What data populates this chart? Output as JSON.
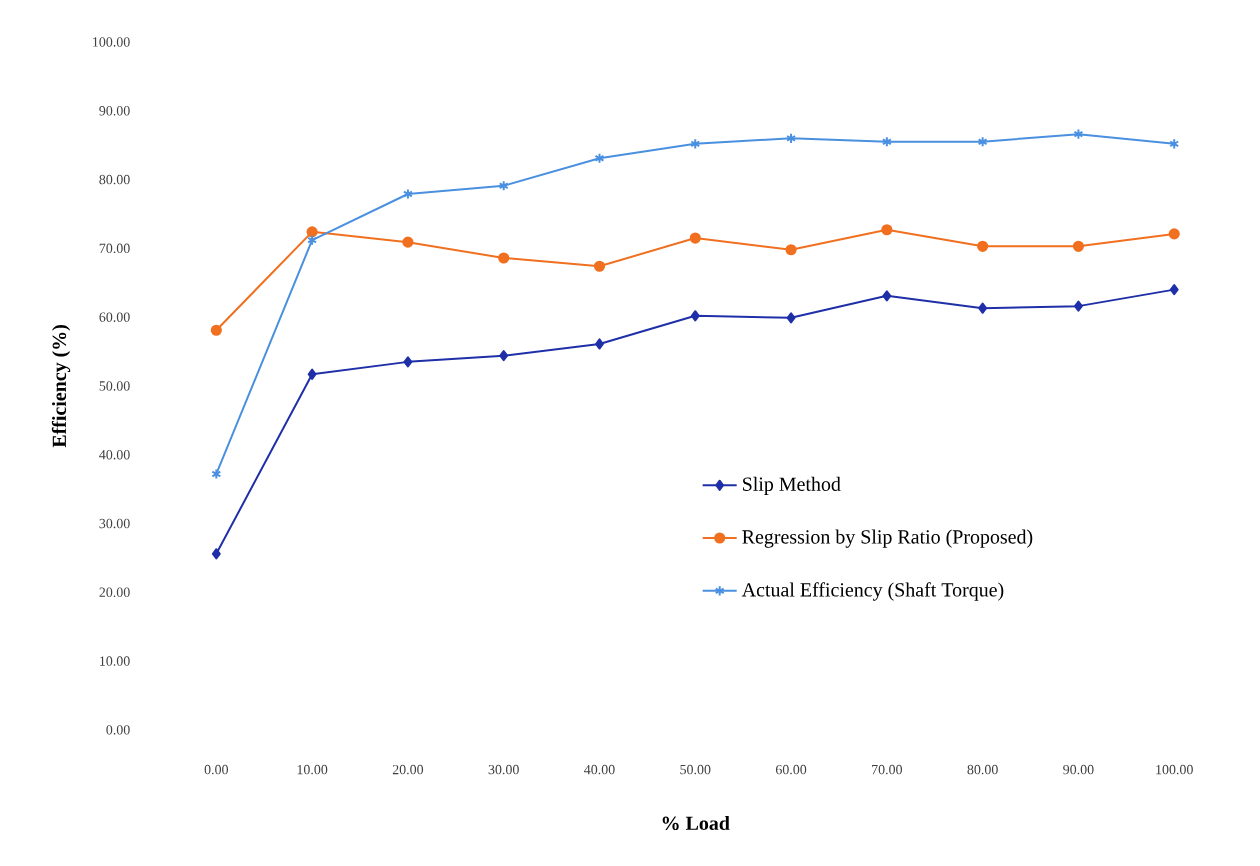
{
  "chart_data": {
    "type": "line",
    "xlabel": "% Load",
    "ylabel": "Efficiency (%)",
    "categories": [
      "0.00",
      "10.00",
      "20.00",
      "30.00",
      "40.00",
      "50.00",
      "60.00",
      "70.00",
      "80.00",
      "90.00",
      "100.00"
    ],
    "ylim": [
      0,
      100
    ],
    "yticks": [
      {
        "value": 0,
        "label": "0.00"
      },
      {
        "value": 10,
        "label": "10.00"
      },
      {
        "value": 20,
        "label": "20.00"
      },
      {
        "value": 30,
        "label": "30.00"
      },
      {
        "value": 40,
        "label": "40.00"
      },
      {
        "value": 50,
        "label": "50.00"
      },
      {
        "value": 60,
        "label": "60.00"
      },
      {
        "value": 70,
        "label": "70.00"
      },
      {
        "value": 80,
        "label": "80.00"
      },
      {
        "value": 90,
        "label": "90.00"
      },
      {
        "value": 100,
        "label": "100.00"
      }
    ],
    "legend": "right",
    "grid": false,
    "series": [
      {
        "name": "Slip Method",
        "color": "#1f2fa8",
        "marker": "diamond",
        "values": [
          25.6,
          51.7,
          53.5,
          54.4,
          56.1,
          60.2,
          59.9,
          63.1,
          61.3,
          61.6,
          64.0
        ]
      },
      {
        "name": "Regression by Slip Ratio (Proposed)",
        "color": "#f07020",
        "marker": "circle",
        "values": [
          58.1,
          72.4,
          70.9,
          68.6,
          67.4,
          71.5,
          69.8,
          72.7,
          70.3,
          70.3,
          72.1
        ]
      },
      {
        "name": "Actual Efficiency (Shaft Torque)",
        "color": "#4a90e0",
        "marker": "cross",
        "values": [
          37.2,
          71.2,
          77.9,
          79.1,
          83.1,
          85.2,
          86.0,
          85.5,
          85.5,
          86.6,
          85.2
        ]
      }
    ]
  }
}
